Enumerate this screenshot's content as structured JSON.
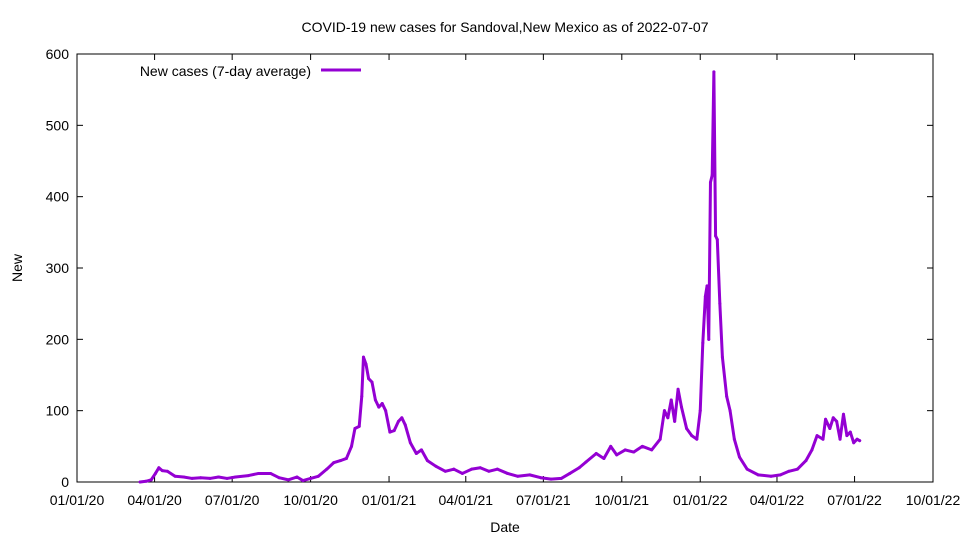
{
  "chart_data": {
    "type": "line",
    "title": "COVID-19 new cases for Sandoval,New Mexico as of 2022-07-07",
    "xlabel": "Date",
    "ylabel": "New",
    "x_range": [
      "2020-01-01",
      "2022-10-01"
    ],
    "ylim": [
      0,
      600
    ],
    "grid": false,
    "legend_position": "top-left",
    "x_ticks": [
      {
        "date": "2020-01-01",
        "label": "01/01/20"
      },
      {
        "date": "2020-04-01",
        "label": "04/01/20"
      },
      {
        "date": "2020-07-01",
        "label": "07/01/20"
      },
      {
        "date": "2020-10-01",
        "label": "10/01/20"
      },
      {
        "date": "2021-01-01",
        "label": "01/01/21"
      },
      {
        "date": "2021-04-01",
        "label": "04/01/21"
      },
      {
        "date": "2021-07-01",
        "label": "07/01/21"
      },
      {
        "date": "2021-10-01",
        "label": "10/01/21"
      },
      {
        "date": "2022-01-01",
        "label": "01/01/22"
      },
      {
        "date": "2022-04-01",
        "label": "04/01/22"
      },
      {
        "date": "2022-07-01",
        "label": "07/01/22"
      },
      {
        "date": "2022-10-01",
        "label": "10/01/22"
      }
    ],
    "y_ticks": [
      0,
      100,
      200,
      300,
      400,
      500,
      600
    ],
    "series": [
      {
        "name": "New cases (7-day average)",
        "color": "#9400d3",
        "points": [
          [
            "2020-03-15",
            0
          ],
          [
            "2020-03-22",
            1
          ],
          [
            "2020-03-28",
            3
          ],
          [
            "2020-04-02",
            12
          ],
          [
            "2020-04-06",
            20
          ],
          [
            "2020-04-10",
            16
          ],
          [
            "2020-04-16",
            15
          ],
          [
            "2020-04-25",
            8
          ],
          [
            "2020-05-05",
            7
          ],
          [
            "2020-05-15",
            5
          ],
          [
            "2020-05-25",
            6
          ],
          [
            "2020-06-05",
            5
          ],
          [
            "2020-06-15",
            7
          ],
          [
            "2020-06-25",
            5
          ],
          [
            "2020-07-05",
            7
          ],
          [
            "2020-07-20",
            9
          ],
          [
            "2020-08-01",
            12
          ],
          [
            "2020-08-15",
            12
          ],
          [
            "2020-08-25",
            6
          ],
          [
            "2020-09-05",
            3
          ],
          [
            "2020-09-15",
            7
          ],
          [
            "2020-09-22",
            2
          ],
          [
            "2020-10-01",
            5
          ],
          [
            "2020-10-10",
            8
          ],
          [
            "2020-10-20",
            18
          ],
          [
            "2020-10-28",
            27
          ],
          [
            "2020-11-05",
            30
          ],
          [
            "2020-11-12",
            33
          ],
          [
            "2020-11-18",
            50
          ],
          [
            "2020-11-22",
            75
          ],
          [
            "2020-11-27",
            78
          ],
          [
            "2020-11-30",
            120
          ],
          [
            "2020-12-02",
            175
          ],
          [
            "2020-12-05",
            165
          ],
          [
            "2020-12-08",
            145
          ],
          [
            "2020-12-12",
            140
          ],
          [
            "2020-12-16",
            115
          ],
          [
            "2020-12-20",
            105
          ],
          [
            "2020-12-24",
            110
          ],
          [
            "2020-12-28",
            100
          ],
          [
            "2021-01-02",
            70
          ],
          [
            "2021-01-07",
            72
          ],
          [
            "2021-01-12",
            85
          ],
          [
            "2021-01-16",
            90
          ],
          [
            "2021-01-20",
            80
          ],
          [
            "2021-01-26",
            55
          ],
          [
            "2021-02-02",
            40
          ],
          [
            "2021-02-08",
            45
          ],
          [
            "2021-02-15",
            30
          ],
          [
            "2021-02-25",
            22
          ],
          [
            "2021-03-08",
            15
          ],
          [
            "2021-03-18",
            18
          ],
          [
            "2021-03-28",
            12
          ],
          [
            "2021-04-08",
            18
          ],
          [
            "2021-04-18",
            20
          ],
          [
            "2021-04-28",
            15
          ],
          [
            "2021-05-08",
            18
          ],
          [
            "2021-05-20",
            12
          ],
          [
            "2021-06-01",
            8
          ],
          [
            "2021-06-15",
            10
          ],
          [
            "2021-06-28",
            6
          ],
          [
            "2021-07-10",
            4
          ],
          [
            "2021-07-22",
            5
          ],
          [
            "2021-08-01",
            12
          ],
          [
            "2021-08-12",
            20
          ],
          [
            "2021-08-20",
            28
          ],
          [
            "2021-09-01",
            40
          ],
          [
            "2021-09-10",
            33
          ],
          [
            "2021-09-18",
            50
          ],
          [
            "2021-09-25",
            38
          ],
          [
            "2021-10-05",
            45
          ],
          [
            "2021-10-15",
            42
          ],
          [
            "2021-10-25",
            50
          ],
          [
            "2021-11-05",
            45
          ],
          [
            "2021-11-15",
            60
          ],
          [
            "2021-11-20",
            100
          ],
          [
            "2021-11-24",
            90
          ],
          [
            "2021-11-28",
            115
          ],
          [
            "2021-12-02",
            85
          ],
          [
            "2021-12-06",
            130
          ],
          [
            "2021-12-10",
            105
          ],
          [
            "2021-12-16",
            75
          ],
          [
            "2021-12-22",
            65
          ],
          [
            "2021-12-28",
            60
          ],
          [
            "2022-01-01",
            100
          ],
          [
            "2022-01-04",
            195
          ],
          [
            "2022-01-07",
            260
          ],
          [
            "2022-01-09",
            275
          ],
          [
            "2022-01-11",
            200
          ],
          [
            "2022-01-13",
            420
          ],
          [
            "2022-01-15",
            430
          ],
          [
            "2022-01-17",
            575
          ],
          [
            "2022-01-19",
            345
          ],
          [
            "2022-01-21",
            340
          ],
          [
            "2022-01-24",
            250
          ],
          [
            "2022-01-27",
            175
          ],
          [
            "2022-02-01",
            120
          ],
          [
            "2022-02-05",
            100
          ],
          [
            "2022-02-10",
            60
          ],
          [
            "2022-02-16",
            35
          ],
          [
            "2022-02-25",
            18
          ],
          [
            "2022-03-10",
            10
          ],
          [
            "2022-03-25",
            8
          ],
          [
            "2022-04-05",
            10
          ],
          [
            "2022-04-15",
            15
          ],
          [
            "2022-04-25",
            18
          ],
          [
            "2022-05-05",
            30
          ],
          [
            "2022-05-12",
            45
          ],
          [
            "2022-05-18",
            65
          ],
          [
            "2022-05-25",
            60
          ],
          [
            "2022-05-28",
            88
          ],
          [
            "2022-06-02",
            75
          ],
          [
            "2022-06-06",
            90
          ],
          [
            "2022-06-10",
            85
          ],
          [
            "2022-06-14",
            60
          ],
          [
            "2022-06-18",
            95
          ],
          [
            "2022-06-22",
            65
          ],
          [
            "2022-06-26",
            70
          ],
          [
            "2022-06-30",
            55
          ],
          [
            "2022-07-04",
            60
          ],
          [
            "2022-07-07",
            58
          ]
        ]
      }
    ]
  }
}
